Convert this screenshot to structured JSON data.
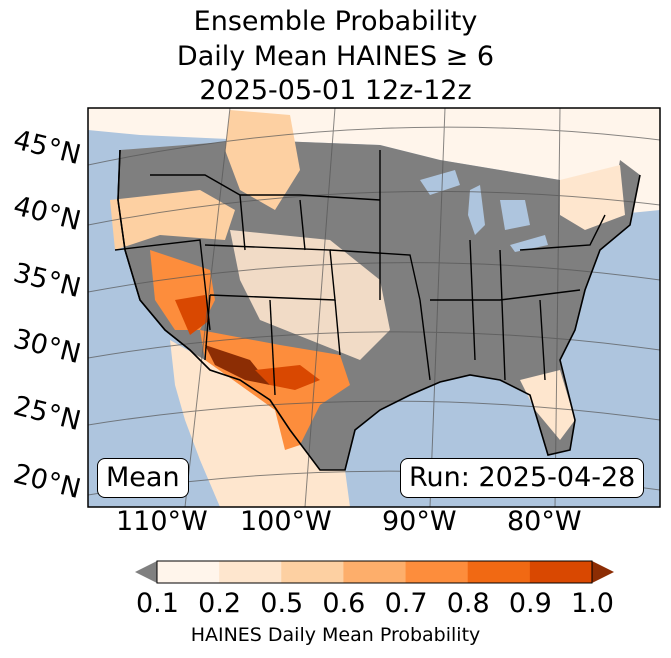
{
  "title": {
    "line1": "Ensemble Probability",
    "line2": "Daily Mean HAINES ≥ 6",
    "line3": "2025-05-01 12z-12z"
  },
  "lat_labels": [
    "45°N",
    "40°N",
    "35°N",
    "30°N",
    "25°N",
    "20°N"
  ],
  "lon_labels": [
    "110°W",
    "100°W",
    "90°W",
    "80°W"
  ],
  "annotations": {
    "stat": "Mean",
    "run": "Run: 2025-04-28"
  },
  "colorbar": {
    "ticks": [
      "0.1",
      "0.2",
      "0.5",
      "0.6",
      "0.7",
      "0.8",
      "0.9",
      "1.0"
    ],
    "label": "HAINES Daily Mean Probability",
    "colors": [
      "#fff5eb",
      "#fee6ce",
      "#fdd0a2",
      "#fdae6b",
      "#fd8d3c",
      "#f16913",
      "#d94801",
      "#8c2d04"
    ],
    "under_color": "#808080"
  },
  "map_colors": {
    "ocean": "#aec5de",
    "land_low": "#7f7f7f",
    "lakes": "#aec5de"
  }
}
